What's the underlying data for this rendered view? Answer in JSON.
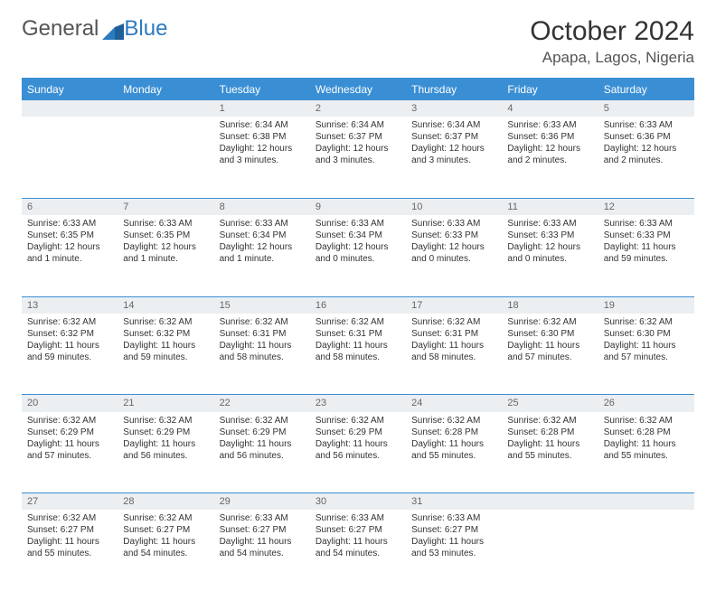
{
  "logo": {
    "part1": "General",
    "part2": "Blue"
  },
  "title": "October 2024",
  "location": "Apapa, Lagos, Nigeria",
  "colors": {
    "header_bg": "#3a8fd4",
    "header_text": "#ffffff",
    "daynum_bg": "#eceff1",
    "daynum_text": "#666666",
    "border": "#3a8fd4",
    "body_text": "#333333"
  },
  "weekdays": [
    "Sunday",
    "Monday",
    "Tuesday",
    "Wednesday",
    "Thursday",
    "Friday",
    "Saturday"
  ],
  "weeks": [
    [
      null,
      null,
      {
        "n": "1",
        "sr": "Sunrise: 6:34 AM",
        "ss": "Sunset: 6:38 PM",
        "dl": "Daylight: 12 hours and 3 minutes."
      },
      {
        "n": "2",
        "sr": "Sunrise: 6:34 AM",
        "ss": "Sunset: 6:37 PM",
        "dl": "Daylight: 12 hours and 3 minutes."
      },
      {
        "n": "3",
        "sr": "Sunrise: 6:34 AM",
        "ss": "Sunset: 6:37 PM",
        "dl": "Daylight: 12 hours and 3 minutes."
      },
      {
        "n": "4",
        "sr": "Sunrise: 6:33 AM",
        "ss": "Sunset: 6:36 PM",
        "dl": "Daylight: 12 hours and 2 minutes."
      },
      {
        "n": "5",
        "sr": "Sunrise: 6:33 AM",
        "ss": "Sunset: 6:36 PM",
        "dl": "Daylight: 12 hours and 2 minutes."
      }
    ],
    [
      {
        "n": "6",
        "sr": "Sunrise: 6:33 AM",
        "ss": "Sunset: 6:35 PM",
        "dl": "Daylight: 12 hours and 1 minute."
      },
      {
        "n": "7",
        "sr": "Sunrise: 6:33 AM",
        "ss": "Sunset: 6:35 PM",
        "dl": "Daylight: 12 hours and 1 minute."
      },
      {
        "n": "8",
        "sr": "Sunrise: 6:33 AM",
        "ss": "Sunset: 6:34 PM",
        "dl": "Daylight: 12 hours and 1 minute."
      },
      {
        "n": "9",
        "sr": "Sunrise: 6:33 AM",
        "ss": "Sunset: 6:34 PM",
        "dl": "Daylight: 12 hours and 0 minutes."
      },
      {
        "n": "10",
        "sr": "Sunrise: 6:33 AM",
        "ss": "Sunset: 6:33 PM",
        "dl": "Daylight: 12 hours and 0 minutes."
      },
      {
        "n": "11",
        "sr": "Sunrise: 6:33 AM",
        "ss": "Sunset: 6:33 PM",
        "dl": "Daylight: 12 hours and 0 minutes."
      },
      {
        "n": "12",
        "sr": "Sunrise: 6:33 AM",
        "ss": "Sunset: 6:33 PM",
        "dl": "Daylight: 11 hours and 59 minutes."
      }
    ],
    [
      {
        "n": "13",
        "sr": "Sunrise: 6:32 AM",
        "ss": "Sunset: 6:32 PM",
        "dl": "Daylight: 11 hours and 59 minutes."
      },
      {
        "n": "14",
        "sr": "Sunrise: 6:32 AM",
        "ss": "Sunset: 6:32 PM",
        "dl": "Daylight: 11 hours and 59 minutes."
      },
      {
        "n": "15",
        "sr": "Sunrise: 6:32 AM",
        "ss": "Sunset: 6:31 PM",
        "dl": "Daylight: 11 hours and 58 minutes."
      },
      {
        "n": "16",
        "sr": "Sunrise: 6:32 AM",
        "ss": "Sunset: 6:31 PM",
        "dl": "Daylight: 11 hours and 58 minutes."
      },
      {
        "n": "17",
        "sr": "Sunrise: 6:32 AM",
        "ss": "Sunset: 6:31 PM",
        "dl": "Daylight: 11 hours and 58 minutes."
      },
      {
        "n": "18",
        "sr": "Sunrise: 6:32 AM",
        "ss": "Sunset: 6:30 PM",
        "dl": "Daylight: 11 hours and 57 minutes."
      },
      {
        "n": "19",
        "sr": "Sunrise: 6:32 AM",
        "ss": "Sunset: 6:30 PM",
        "dl": "Daylight: 11 hours and 57 minutes."
      }
    ],
    [
      {
        "n": "20",
        "sr": "Sunrise: 6:32 AM",
        "ss": "Sunset: 6:29 PM",
        "dl": "Daylight: 11 hours and 57 minutes."
      },
      {
        "n": "21",
        "sr": "Sunrise: 6:32 AM",
        "ss": "Sunset: 6:29 PM",
        "dl": "Daylight: 11 hours and 56 minutes."
      },
      {
        "n": "22",
        "sr": "Sunrise: 6:32 AM",
        "ss": "Sunset: 6:29 PM",
        "dl": "Daylight: 11 hours and 56 minutes."
      },
      {
        "n": "23",
        "sr": "Sunrise: 6:32 AM",
        "ss": "Sunset: 6:29 PM",
        "dl": "Daylight: 11 hours and 56 minutes."
      },
      {
        "n": "24",
        "sr": "Sunrise: 6:32 AM",
        "ss": "Sunset: 6:28 PM",
        "dl": "Daylight: 11 hours and 55 minutes."
      },
      {
        "n": "25",
        "sr": "Sunrise: 6:32 AM",
        "ss": "Sunset: 6:28 PM",
        "dl": "Daylight: 11 hours and 55 minutes."
      },
      {
        "n": "26",
        "sr": "Sunrise: 6:32 AM",
        "ss": "Sunset: 6:28 PM",
        "dl": "Daylight: 11 hours and 55 minutes."
      }
    ],
    [
      {
        "n": "27",
        "sr": "Sunrise: 6:32 AM",
        "ss": "Sunset: 6:27 PM",
        "dl": "Daylight: 11 hours and 55 minutes."
      },
      {
        "n": "28",
        "sr": "Sunrise: 6:32 AM",
        "ss": "Sunset: 6:27 PM",
        "dl": "Daylight: 11 hours and 54 minutes."
      },
      {
        "n": "29",
        "sr": "Sunrise: 6:33 AM",
        "ss": "Sunset: 6:27 PM",
        "dl": "Daylight: 11 hours and 54 minutes."
      },
      {
        "n": "30",
        "sr": "Sunrise: 6:33 AM",
        "ss": "Sunset: 6:27 PM",
        "dl": "Daylight: 11 hours and 54 minutes."
      },
      {
        "n": "31",
        "sr": "Sunrise: 6:33 AM",
        "ss": "Sunset: 6:27 PM",
        "dl": "Daylight: 11 hours and 53 minutes."
      },
      null,
      null
    ]
  ]
}
